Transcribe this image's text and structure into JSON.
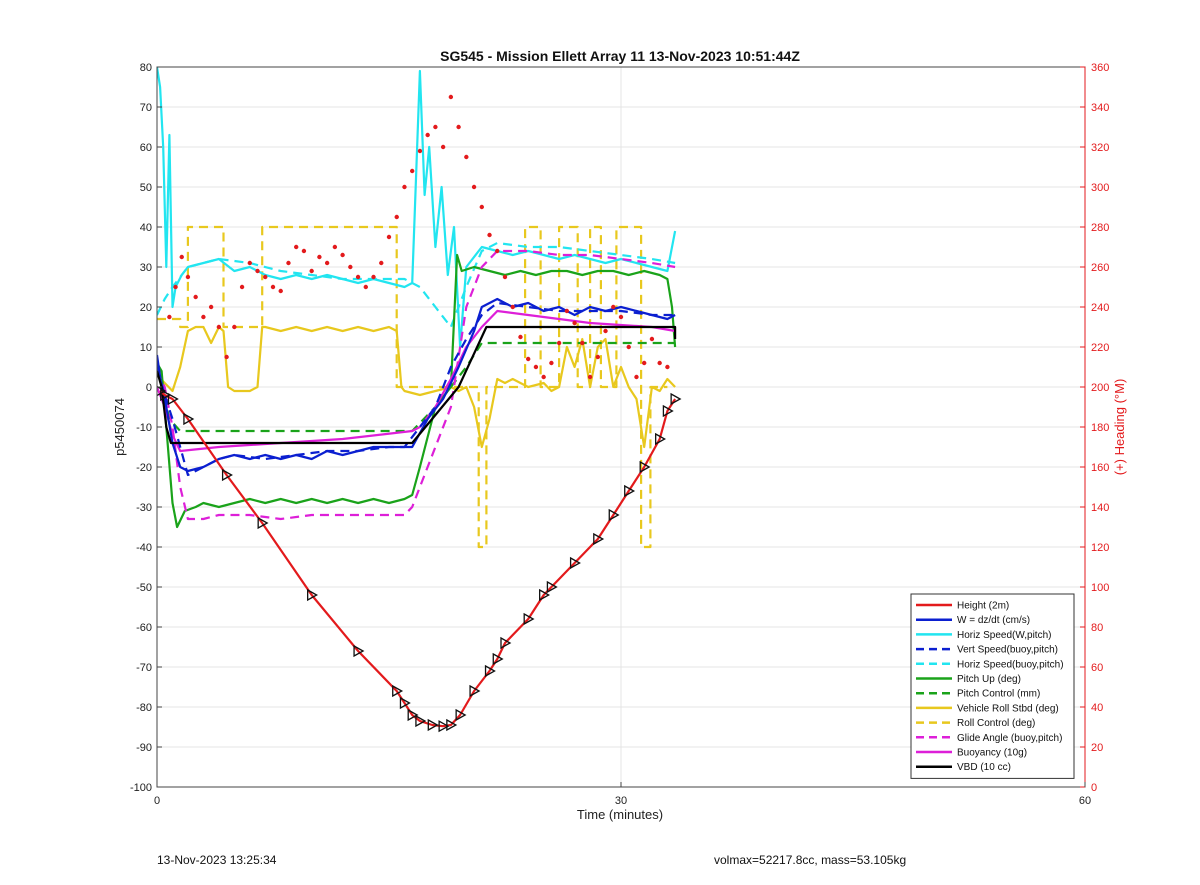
{
  "chart_data": {
    "type": "line",
    "title": "SG545 - Mission Ellett Array 11 13-Nov-2023 10:51:44Z",
    "xlabel": "Time (minutes)",
    "ylabel": "p5450074",
    "y2label": "(+) Heading (°M)",
    "xlim": [
      0,
      60
    ],
    "ylim": [
      -100,
      80
    ],
    "y2lim": [
      0,
      360
    ],
    "xticks": [
      0,
      30,
      60
    ],
    "yticks": [
      -100,
      -90,
      -80,
      -70,
      -60,
      -50,
      -40,
      -30,
      -20,
      -10,
      0,
      10,
      20,
      30,
      40,
      50,
      60,
      70,
      80
    ],
    "y2ticks": [
      0,
      20,
      40,
      60,
      80,
      100,
      120,
      140,
      160,
      180,
      200,
      220,
      240,
      260,
      280,
      300,
      320,
      340,
      360
    ],
    "grid": true,
    "legend_position": "bottom-right",
    "series": [
      {
        "name": "Height (2m)",
        "color": "#e31a1c",
        "style": "solid",
        "marker": "triangle",
        "x": [
          0.2,
          0.5,
          1.0,
          2.0,
          4.5,
          6.8,
          10.0,
          13.0,
          15.5,
          16.0,
          16.5,
          17.0,
          17.8,
          18.5,
          19.0,
          19.6,
          20.5,
          21.5,
          22.0,
          22.5,
          24.0,
          25.0,
          25.5,
          27.0,
          28.5,
          29.5,
          30.5,
          31.5,
          32.5,
          33.0,
          33.5
        ],
        "y": [
          -1,
          -2,
          -3,
          -8,
          -22,
          -34,
          -52,
          -66,
          -76,
          -79,
          -82,
          -83.5,
          -84.5,
          -84.8,
          -84.5,
          -82,
          -76,
          -71,
          -68,
          -64,
          -58,
          -52,
          -50,
          -44,
          -38,
          -32,
          -26,
          -20,
          -13,
          -6,
          -3
        ]
      },
      {
        "name": "W = dz/dt (cm/s)",
        "color": "#0b1fd0",
        "style": "solid",
        "x": [
          0,
          0.3,
          0.6,
          1.0,
          1.5,
          2.0,
          3.0,
          4.0,
          5.0,
          6.0,
          7.0,
          8.0,
          9.0,
          10.0,
          11.0,
          12.0,
          13.0,
          14.0,
          15.0,
          16.0,
          16.5,
          17.5,
          18.5,
          19.5,
          20.5,
          21.0,
          22.0,
          23.0,
          24.0,
          25.0,
          26.0,
          27.0,
          28.0,
          29.0,
          30.0,
          31.0,
          32.0,
          33.0,
          33.5
        ],
        "y": [
          8,
          0,
          -5,
          -14,
          -20,
          -21,
          -20,
          -18,
          -17,
          -18,
          -17,
          -18,
          -17,
          -18,
          -16,
          -17,
          -16,
          -15,
          -15,
          -15,
          -15,
          -8,
          -3,
          5,
          14,
          20,
          22,
          20,
          21,
          19,
          20,
          18,
          20,
          19,
          20,
          19,
          18,
          17,
          18
        ]
      },
      {
        "name": "Horiz Speed(W,pitch)",
        "color": "#22e5f0",
        "style": "solid",
        "x": [
          0,
          0.2,
          0.4,
          0.6,
          0.8,
          1.0,
          1.2,
          1.6,
          2.0,
          3.0,
          4.0,
          5.0,
          6.0,
          7.0,
          8.0,
          9.0,
          10.0,
          11.0,
          12.0,
          13.0,
          14.0,
          15.0,
          16.0,
          16.5,
          17.0,
          17.3,
          17.6,
          18.0,
          18.4,
          18.8,
          19.2,
          19.6,
          20.0,
          21.0,
          22.0,
          23.0,
          24.0,
          25.0,
          26.0,
          27.0,
          28.0,
          29.0,
          30.0,
          31.0,
          32.0,
          33.0,
          33.5
        ],
        "y": [
          80,
          75,
          60,
          30,
          63,
          20,
          25,
          28,
          30,
          31,
          32,
          29,
          30,
          28,
          27,
          28,
          27,
          28,
          27,
          26,
          27,
          26,
          25,
          26,
          79,
          48,
          60,
          35,
          50,
          28,
          40,
          10,
          30,
          35,
          34,
          33,
          34,
          33,
          32,
          33,
          32,
          31,
          32,
          31,
          30,
          29,
          39
        ]
      },
      {
        "name": "Vert Speed(buoy,pitch)",
        "color": "#0b1fd0",
        "style": "dash",
        "x": [
          0,
          0.5,
          1.0,
          2.0,
          3.0,
          4.0,
          5.0,
          7.0,
          9.0,
          11.0,
          13.0,
          15.0,
          16.0,
          17.0,
          18.0,
          19.0,
          20.0,
          21.0,
          22.0,
          24.0,
          26.0,
          28.0,
          30.0,
          32.0,
          33.5
        ],
        "y": [
          5,
          -2,
          -8,
          -22,
          -20,
          -18,
          -17,
          -18,
          -17,
          -16,
          -16,
          -15,
          -15,
          -10,
          -5,
          5,
          12,
          18,
          21,
          20,
          19,
          19,
          19,
          18,
          18
        ]
      },
      {
        "name": "Horiz Speed(buoy,pitch)",
        "color": "#22e5f0",
        "style": "dash",
        "x": [
          0,
          0.5,
          1.0,
          2.0,
          4.0,
          6.0,
          8.0,
          10.0,
          12.0,
          14.0,
          16.0,
          17.0,
          18.0,
          19.0,
          20.0,
          21.0,
          22.0,
          24.0,
          26.0,
          28.0,
          30.0,
          32.0,
          33.5
        ],
        "y": [
          18,
          22,
          25,
          30,
          32,
          31,
          29,
          28,
          27,
          27,
          27,
          25,
          20,
          15,
          25,
          34,
          36,
          35,
          35,
          34,
          33,
          32,
          31
        ]
      },
      {
        "name": "Pitch Up (deg)",
        "color": "#1aa31a",
        "style": "solid",
        "x": [
          0,
          0.3,
          0.6,
          1.0,
          1.3,
          1.8,
          2.5,
          3.0,
          4.0,
          5.0,
          6.0,
          7.0,
          8.0,
          9.0,
          10.0,
          11.0,
          12.0,
          13.0,
          14.0,
          15.0,
          16.0,
          16.5,
          17.0,
          18.0,
          19.0,
          19.4,
          19.7,
          20.5,
          21.5,
          22.5,
          23.5,
          24.5,
          25.5,
          26.5,
          27.5,
          28.5,
          29.5,
          30.5,
          31.5,
          32.5,
          33.0,
          33.3,
          33.5
        ],
        "y": [
          6,
          4,
          -10,
          -29,
          -35,
          -31,
          -30,
          -29,
          -30,
          -29,
          -28,
          -29,
          -28,
          -29,
          -28,
          -29,
          -28,
          -29,
          -28,
          -29,
          -28,
          -27,
          -20,
          -5,
          0,
          33,
          29,
          30,
          29,
          28,
          29,
          28,
          29,
          29,
          28,
          29,
          29,
          28,
          29,
          28,
          27,
          20,
          10
        ]
      },
      {
        "name": "Pitch Control (mm)",
        "color": "#1aa31a",
        "style": "dash",
        "x": [
          0,
          0.3,
          0.8,
          1.5,
          16.5,
          17.0,
          18.0,
          19.0,
          20.0,
          21.0,
          22.0,
          33.5
        ],
        "y": [
          5,
          0,
          -8,
          -11,
          -11,
          -9,
          -5,
          0,
          5,
          11,
          11,
          11
        ]
      },
      {
        "name": "Vehicle Roll Stbd (deg)",
        "color": "#e8c81e",
        "style": "solid",
        "x": [
          0,
          0.5,
          1.0,
          1.5,
          2.0,
          2.5,
          3.0,
          3.5,
          4.0,
          4.3,
          4.6,
          5.0,
          6.0,
          6.5,
          6.8,
          7.0,
          8.0,
          9.0,
          10.0,
          11.0,
          12.0,
          13.0,
          14.0,
          15.0,
          15.5,
          15.8,
          16.0,
          17.0,
          18.0,
          19.0,
          19.5,
          20.0,
          20.5,
          21.0,
          21.5,
          22.0,
          22.5,
          23.0,
          24.0,
          25.0,
          25.5,
          26.0,
          26.5,
          27.0,
          27.5,
          28.0,
          28.5,
          29.0,
          29.5,
          30.0,
          30.5,
          31.0,
          31.5,
          32.0,
          32.5,
          33.0,
          33.5
        ],
        "y": [
          3,
          1,
          -1,
          5,
          14,
          15,
          15,
          11,
          15,
          14,
          0,
          -1,
          -1,
          0,
          15,
          15,
          14,
          15,
          14,
          15,
          14,
          15,
          14,
          15,
          14,
          0,
          -1,
          -2,
          -1,
          0,
          -1,
          0,
          -5,
          -15,
          -8,
          2,
          1,
          2,
          0,
          1,
          -1,
          0,
          10,
          5,
          12,
          0,
          10,
          12,
          0,
          5,
          0,
          -3,
          -15,
          0,
          -1,
          2,
          0
        ]
      },
      {
        "name": "Roll Control (deg)",
        "color": "#e8c81e",
        "style": "dash",
        "x": [
          0,
          1.5,
          1.5,
          2.0,
          2.0,
          4.3,
          4.3,
          6.8,
          6.8,
          15.5,
          15.5,
          20.8,
          20.8,
          21.3,
          21.3,
          23.8,
          23.8,
          24.8,
          24.8,
          26.0,
          26.0,
          27.2,
          27.2,
          28.0,
          28.0,
          28.7,
          28.7,
          29.7,
          29.7,
          31.3,
          31.3,
          31.9,
          31.9,
          33.0
        ],
        "y": [
          17,
          17,
          15,
          15,
          40,
          40,
          15,
          15,
          40,
          40,
          0,
          0,
          -40,
          -40,
          0,
          0,
          40,
          40,
          0,
          0,
          40,
          40,
          0,
          0,
          40,
          40,
          0,
          0,
          40,
          40,
          -40,
          -40,
          0,
          0
        ]
      },
      {
        "name": "Glide Angle (buoy,pitch)",
        "color": "#dd1fd8",
        "style": "dash",
        "x": [
          0,
          0.5,
          1.0,
          1.5,
          2.0,
          3.0,
          4.0,
          6.0,
          8.0,
          10.0,
          12.0,
          14.0,
          16.0,
          16.5,
          17.0,
          18.0,
          19.0,
          20.0,
          21.0,
          22.0,
          24.0,
          26.0,
          28.0,
          30.0,
          32.0,
          33.5
        ],
        "y": [
          4,
          0,
          -10,
          -25,
          -33,
          -33,
          -32,
          -32,
          -33,
          -32,
          -32,
          -32,
          -32,
          -30,
          -25,
          -15,
          -5,
          20,
          30,
          34,
          34,
          33,
          33,
          32,
          31,
          30
        ]
      },
      {
        "name": "Buoyancy (10g)",
        "color": "#dd1fd8",
        "style": "solid",
        "x": [
          0,
          0.5,
          1.0,
          1.5,
          4.0,
          8.0,
          12.0,
          16.5,
          17.0,
          18.0,
          19.0,
          20.0,
          21.0,
          22.0,
          24.0,
          28.0,
          32.0,
          33.5
        ],
        "y": [
          0,
          -5,
          -12,
          -16,
          -15,
          -14,
          -13,
          -11,
          -10,
          -5,
          2,
          10,
          15,
          19,
          18,
          16,
          15,
          14
        ]
      },
      {
        "name": "VBD (10 cc)",
        "color": "#000000",
        "style": "solid",
        "x": [
          0,
          0.3,
          0.6,
          0.9,
          16.5,
          19.5,
          21.3,
          33.5,
          33.5
        ],
        "y": [
          4,
          0,
          -10,
          -14,
          -14,
          0,
          15,
          15,
          12
        ]
      },
      {
        "name": "",
        "color": "#e31a1c",
        "style": "dot",
        "axis": "right",
        "x": [
          0.8,
          1.2,
          1.6,
          2.0,
          2.5,
          3.0,
          3.5,
          4.0,
          4.5,
          5.0,
          5.5,
          6.0,
          6.5,
          7.0,
          7.5,
          8.0,
          8.5,
          9.0,
          9.5,
          10.0,
          10.5,
          11.0,
          11.5,
          12.0,
          12.5,
          13.0,
          13.5,
          14.0,
          14.5,
          15.0,
          15.5,
          16.0,
          16.5,
          17.0,
          17.5,
          18.0,
          18.5,
          19.0,
          19.5,
          20.0,
          20.5,
          21.0,
          21.5,
          22.0,
          22.5,
          23.0,
          23.5,
          24.0,
          24.5,
          25.0,
          25.5,
          26.0,
          26.5,
          27.0,
          27.5,
          28.0,
          28.5,
          29.0,
          29.5,
          30.0,
          30.5,
          31.0,
          31.5,
          32.0,
          32.5,
          33.0
        ],
        "y": [
          235,
          250,
          265,
          255,
          245,
          235,
          240,
          230,
          215,
          230,
          250,
          262,
          258,
          255,
          250,
          248,
          262,
          270,
          268,
          258,
          265,
          262,
          270,
          266,
          260,
          255,
          250,
          255,
          262,
          275,
          285,
          300,
          308,
          318,
          326,
          330,
          320,
          345,
          330,
          315,
          300,
          290,
          276,
          268,
          255,
          240,
          225,
          214,
          210,
          205,
          212,
          222,
          238,
          232,
          222,
          205,
          215,
          228,
          240,
          235,
          220,
          205,
          212,
          224,
          212,
          210
        ]
      }
    ]
  },
  "footer": {
    "timestamp": "13-Nov-2023 13:25:34",
    "volmax_mass": "volmax=52217.8cc, mass=53.105kg"
  }
}
